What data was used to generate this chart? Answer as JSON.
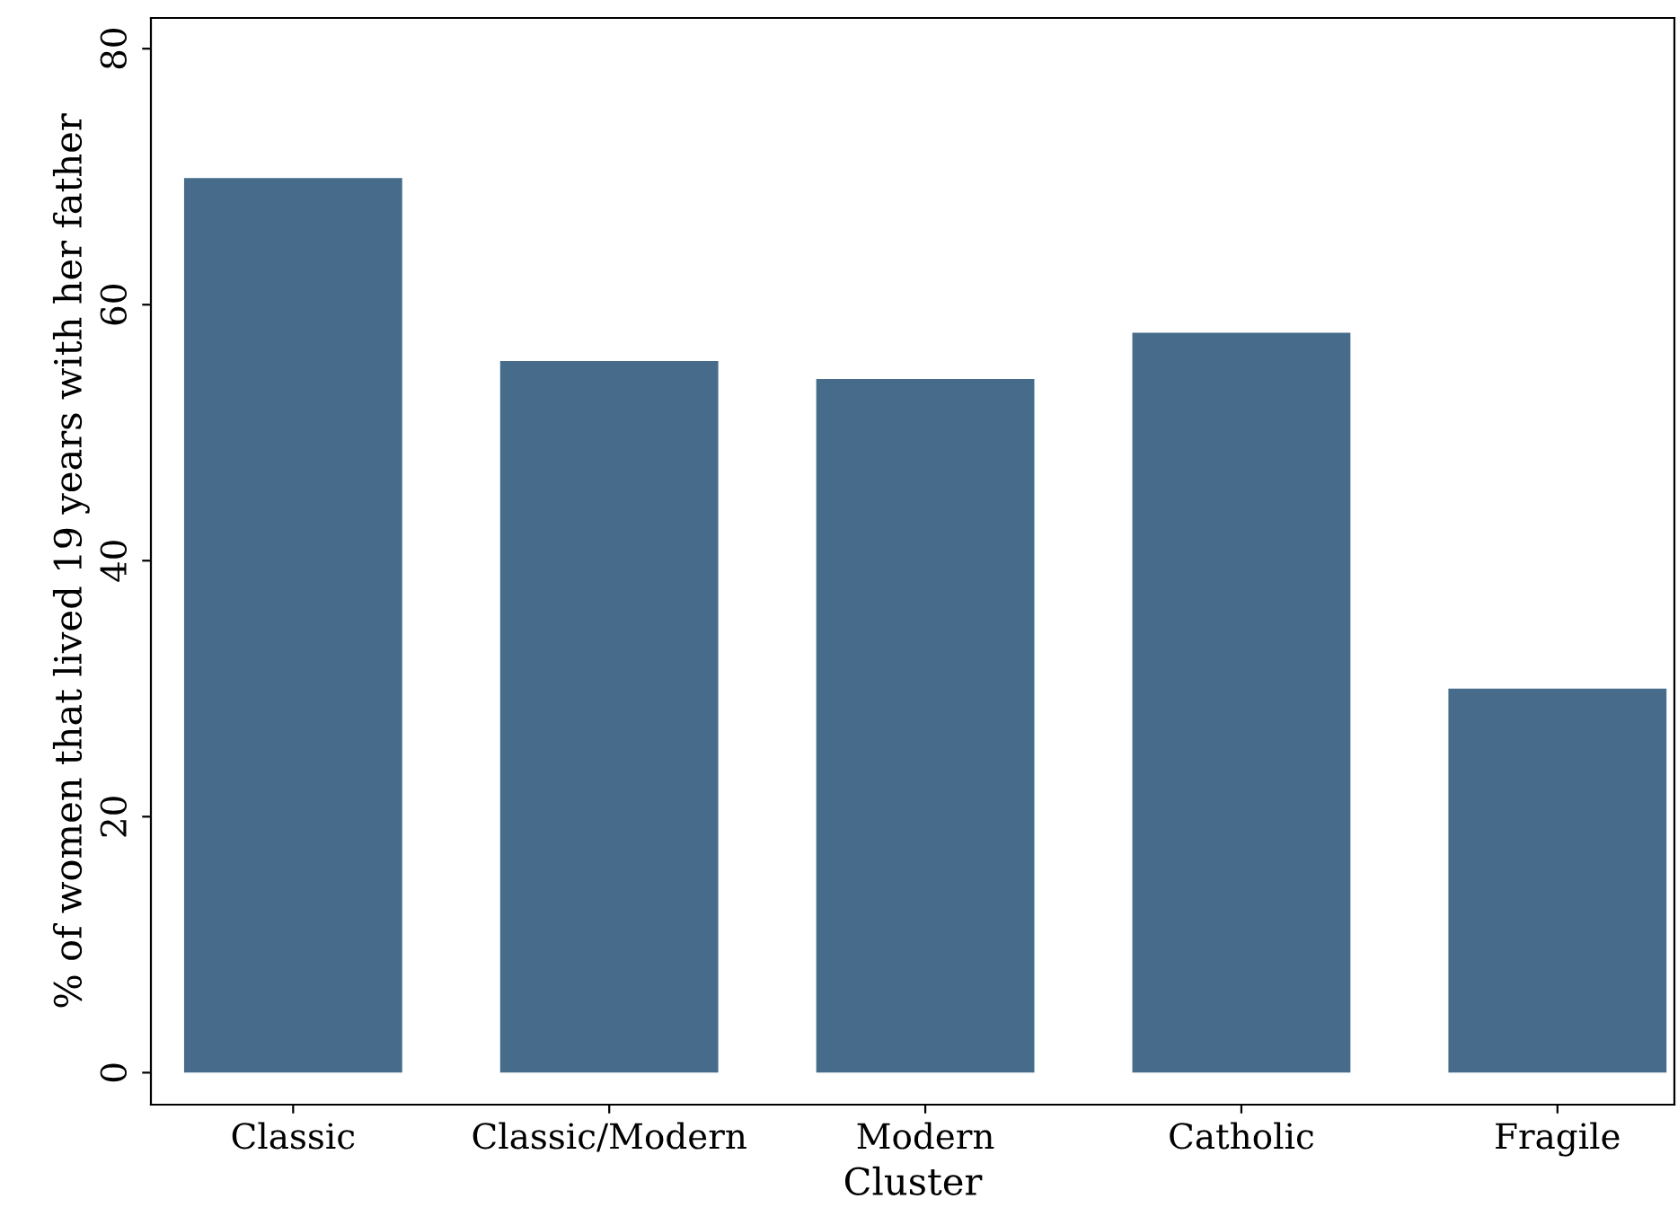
{
  "chart_data": {
    "type": "bar",
    "xlabel": "Cluster",
    "ylabel": "% of women that lived 19 years with her father",
    "categories": [
      "Classic",
      "Classic/Modern",
      "Modern",
      "Catholic",
      "Fragile"
    ],
    "values": [
      69.9,
      55.6,
      54.2,
      57.8,
      30.0
    ],
    "color": "#476b8a",
    "ylim": [
      -2.5,
      82.4
    ],
    "yticks": [
      0,
      20,
      40,
      60,
      80
    ],
    "grid": false,
    "legend": false
  }
}
